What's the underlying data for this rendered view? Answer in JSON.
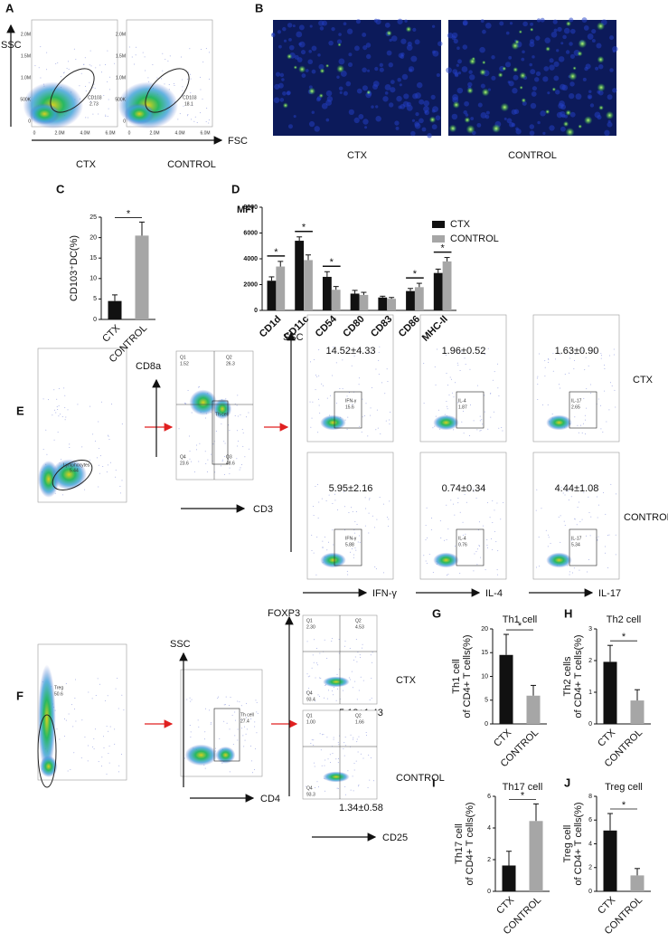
{
  "panels": {
    "A": {
      "label": "A",
      "y_axis": "SSC",
      "x_axis": "FSC",
      "groups": [
        "CTX",
        "CONTROL"
      ],
      "gates": [
        [
          "CD103",
          "2.73"
        ],
        [
          "CD103",
          "18.1"
        ]
      ],
      "xticks": [
        "0",
        "2.0M",
        "4.0M",
        "6.0M"
      ],
      "yticks": [
        "0",
        "500K",
        "1.0M",
        "1.5M",
        "2.0M"
      ]
    },
    "B": {
      "label": "B",
      "groups": [
        "CTX",
        "CONTROL"
      ]
    },
    "E": {
      "label": "E",
      "gate": [
        "Lymphocytes",
        "5.44"
      ],
      "y1": "CD8a",
      "x1": "CD3",
      "quadrants": [
        [
          "Q1",
          "1.52"
        ],
        [
          "Q2",
          "26.3"
        ],
        [
          "Q4",
          "23.6"
        ],
        [
          "Q3",
          "48.6"
        ]
      ],
      "gate2": "Th cell",
      "y2": "SSC",
      "markers": [
        "IFN-γ",
        "IL-4",
        "IL-17"
      ],
      "rows": [
        "CTX",
        "CONTROL"
      ],
      "means": [
        [
          "14.52±4.33",
          "1.96±0.52",
          "1.63±0.90"
        ],
        [
          "5.95±2.16",
          "0.74±0.34",
          "4.44±1.08"
        ]
      ],
      "gates3": [
        [
          [
            "IFN-γ",
            "15.6"
          ],
          [
            "IL-4",
            "1.87"
          ],
          [
            "IL-17",
            "2.65"
          ]
        ],
        [
          [
            "IFN-γ",
            "5.88"
          ],
          [
            "IL-4",
            "0.76"
          ],
          [
            "IL-17",
            "5.34"
          ]
        ]
      ]
    },
    "F": {
      "label": "F",
      "gate": [
        "Treg",
        "50.6"
      ],
      "y1": "SSC",
      "x1": "CD4",
      "gate2": [
        "Th cell",
        "27.4"
      ],
      "y2": "FOXP3",
      "x2": "CD25",
      "rows": [
        "CTX",
        "CONTROL"
      ],
      "means": [
        "5.12±1.43",
        "1.34±0.58"
      ],
      "quadrants": [
        [
          [
            "Q1",
            "2.30"
          ],
          [
            "Q2",
            "4.53"
          ],
          [
            "Q4",
            "93.4"
          ]
        ],
        [
          [
            "Q1",
            "1.00"
          ],
          [
            "Q2",
            "1.66"
          ],
          [
            "Q4",
            "93.3"
          ]
        ]
      ]
    }
  },
  "chart_data": [
    {
      "type": "bar",
      "panel_label": "C",
      "ylabel": [
        "CD103⁺DC(%)"
      ],
      "categories": [
        "CTX",
        "CONTROL"
      ],
      "values": [
        4.5,
        20.5
      ],
      "errors": [
        1.5,
        3.3
      ],
      "colors": [
        "#111111",
        "#a6a6a6"
      ],
      "significance": "*",
      "ylim": [
        0,
        25
      ],
      "yticks": [
        0,
        5,
        10,
        15,
        20,
        25
      ]
    },
    {
      "type": "bar",
      "panel_label": "D",
      "ylabel": [
        "MFI"
      ],
      "categories": [
        "CD1d",
        "CD11c",
        "CD54",
        "CD80",
        "CD83",
        "CD86",
        "MHC-II"
      ],
      "series": [
        {
          "name": "CTX",
          "color": "#111111",
          "values": [
            2300,
            5400,
            2600,
            1300,
            1000,
            1500,
            2900
          ],
          "errors": [
            300,
            300,
            400,
            250,
            100,
            200,
            300
          ]
        },
        {
          "name": "CONTROL",
          "color": "#a6a6a6",
          "values": [
            3400,
            3900,
            1600,
            1200,
            900,
            1800,
            3800
          ],
          "errors": [
            400,
            400,
            250,
            200,
            100,
            300,
            300
          ]
        }
      ],
      "significance": [
        "*",
        "*",
        "*",
        null,
        null,
        "*",
        "*"
      ],
      "ylim": [
        0,
        8000
      ],
      "yticks": [
        0,
        2000,
        4000,
        6000,
        8000
      ]
    },
    {
      "type": "bar",
      "panel_label": "G",
      "title": "Th1 cell",
      "ylabel": [
        "Th1 cell",
        "of CD4+ T cells(%)"
      ],
      "categories": [
        "CTX",
        "CONTROL"
      ],
      "values": [
        14.52,
        5.95
      ],
      "errors": [
        4.33,
        2.16
      ],
      "colors": [
        "#111111",
        "#a6a6a6"
      ],
      "significance": "*",
      "ylim": [
        0,
        20
      ],
      "yticks": [
        0,
        5,
        10,
        15,
        20
      ]
    },
    {
      "type": "bar",
      "panel_label": "H",
      "title": "Th2 cell",
      "ylabel": [
        "Th2 cells",
        "of CD4+ T cells(%)"
      ],
      "categories": [
        "CTX",
        "CONTROL"
      ],
      "values": [
        1.96,
        0.74
      ],
      "errors": [
        0.52,
        0.34
      ],
      "colors": [
        "#111111",
        "#a6a6a6"
      ],
      "significance": "*",
      "ylim": [
        0,
        3
      ],
      "yticks": [
        0,
        1,
        2,
        3
      ]
    },
    {
      "type": "bar",
      "panel_label": "I",
      "title": "Th17 cell",
      "ylabel": [
        "Th17 cell",
        "of CD4+ T cells(%)"
      ],
      "categories": [
        "CTX",
        "CONTROL"
      ],
      "values": [
        1.63,
        4.44
      ],
      "errors": [
        0.9,
        1.08
      ],
      "colors": [
        "#111111",
        "#a6a6a6"
      ],
      "significance": "*",
      "ylim": [
        0,
        6
      ],
      "yticks": [
        0,
        2,
        4,
        6
      ]
    },
    {
      "type": "bar",
      "panel_label": "J",
      "title": "Treg cell",
      "ylabel": [
        "Treg cell",
        "of CD4+ T cells(%)"
      ],
      "categories": [
        "CTX",
        "CONTROL"
      ],
      "values": [
        5.12,
        1.34
      ],
      "errors": [
        1.43,
        0.58
      ],
      "colors": [
        "#111111",
        "#a6a6a6"
      ],
      "significance": "*",
      "ylim": [
        0,
        8
      ],
      "yticks": [
        0,
        2,
        4,
        6,
        8
      ]
    }
  ]
}
